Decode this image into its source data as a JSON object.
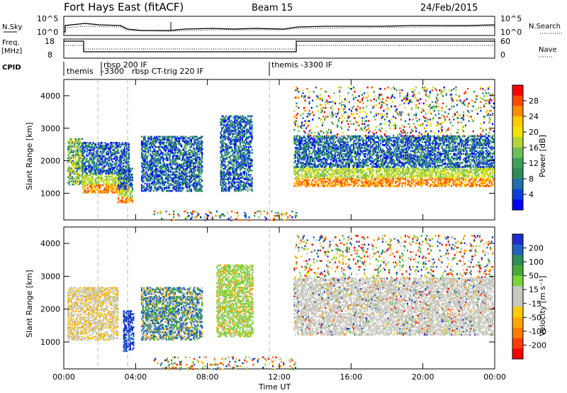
{
  "header": {
    "station": "Fort Hays East (fitACF)",
    "beam": "Beam 15",
    "date": "24/Feb/2015"
  },
  "top_panels": {
    "nsky_label": "N.Sky",
    "nsearch_label": "N.Search",
    "freq_label_1": "Freq.",
    "freq_label_2": "[MHz]",
    "nave_label": "Nave",
    "cpid_label": "CPID",
    "nsky_ticks": [
      "10^5",
      "10^0"
    ],
    "nsearch_ticks": [
      "10^5",
      "10^0"
    ],
    "freq_ticks": [
      "18",
      "8"
    ],
    "nave_ticks": [
      "60",
      "0"
    ],
    "cpid_labels": [
      "themis",
      "rbsp 200 IF",
      "-3300",
      "rbsp CT-trig 220 IF",
      "themis -3300 IF"
    ]
  },
  "colorbars": {
    "power": {
      "label": "Power [dB]",
      "ticks": [
        "28",
        "24",
        "20",
        "16",
        "12",
        "8",
        "4"
      ],
      "colors": [
        "#ff0000",
        "#ff4a00",
        "#ff8c00",
        "#ffc800",
        "#f0e400",
        "#b5d43c",
        "#6cbf54",
        "#3ca05a",
        "#2e8b57",
        "#1f6ea8",
        "#0a3fd8",
        "#0000ff"
      ]
    },
    "velocity": {
      "label": "Velocity [m s⁻¹]",
      "ticks": [
        "200",
        "100",
        "50",
        "15",
        "-15",
        "-50",
        "-100",
        "-200"
      ],
      "colors": [
        "#1b2ec8",
        "#1f60c4",
        "#2b8f53",
        "#48a93a",
        "#7cd33c",
        "#c8c8c0",
        "#c8c8c0",
        "#ffcc00",
        "#ffa500",
        "#ff7a00",
        "#ff3c00",
        "#ff0000"
      ]
    }
  },
  "x_axis": {
    "label": "Time UT",
    "ticks": [
      "00:00",
      "04:00",
      "08:00",
      "12:00",
      "16:00",
      "20:00",
      "00:00"
    ]
  },
  "chart_data": [
    {
      "type": "heatmap",
      "title": "",
      "ylabel": "Slant Range [km]",
      "xlabel": "",
      "ylim": [
        180,
        4500
      ],
      "xlim_hours": [
        0,
        24
      ],
      "yticks": [
        1000,
        2000,
        3000,
        4000
      ],
      "colorbar": "Power [dB]",
      "blobs": [
        {
          "t0": 0.2,
          "t1": 1.0,
          "r0": 1300,
          "r1": 2700,
          "level": "mid"
        },
        {
          "t0": 1.0,
          "t1": 3.6,
          "r0": 1050,
          "r1": 2600,
          "level": "high"
        },
        {
          "t0": 3.0,
          "t1": 3.8,
          "r0": 750,
          "r1": 1800,
          "level": "high"
        },
        {
          "t0": 4.3,
          "t1": 7.7,
          "r0": 1100,
          "r1": 2800,
          "level": "low"
        },
        {
          "t0": 8.7,
          "t1": 10.5,
          "r0": 1100,
          "r1": 3400,
          "level": "low"
        },
        {
          "t0": 12.8,
          "t1": 23.9,
          "r0": 1250,
          "r1": 2800,
          "level": "high"
        },
        {
          "t0": 12.8,
          "t1": 23.9,
          "r0": 2800,
          "r1": 4300,
          "level": "sparse"
        },
        {
          "t0": 5.0,
          "t1": 13.0,
          "r0": 200,
          "r1": 500,
          "level": "sparse"
        }
      ]
    },
    {
      "type": "heatmap",
      "title": "",
      "ylabel": "Slant Range [km]",
      "xlabel": "Time UT",
      "ylim": [
        180,
        4500
      ],
      "xlim_hours": [
        0,
        24
      ],
      "yticks": [
        1000,
        2000,
        3000,
        4000
      ],
      "colorbar": "Velocity [m s⁻¹]",
      "blobs": [
        {
          "t0": 0.2,
          "t1": 3.0,
          "r0": 1100,
          "r1": 2700,
          "kind": "neg"
        },
        {
          "t0": 3.3,
          "t1": 3.9,
          "r0": 750,
          "r1": 2000,
          "kind": "pos"
        },
        {
          "t0": 4.3,
          "t1": 7.7,
          "r0": 1100,
          "r1": 2700,
          "kind": "mixed"
        },
        {
          "t0": 8.5,
          "t1": 10.5,
          "r0": 1200,
          "r1": 3400,
          "kind": "greenish"
        },
        {
          "t0": 12.8,
          "t1": 23.9,
          "r0": 1250,
          "r1": 3000,
          "kind": "ground"
        },
        {
          "t0": 12.8,
          "t1": 23.9,
          "r0": 3000,
          "r1": 4300,
          "kind": "sparse"
        },
        {
          "t0": 5.0,
          "t1": 13.0,
          "r0": 200,
          "r1": 600,
          "kind": "sparse"
        }
      ]
    }
  ]
}
